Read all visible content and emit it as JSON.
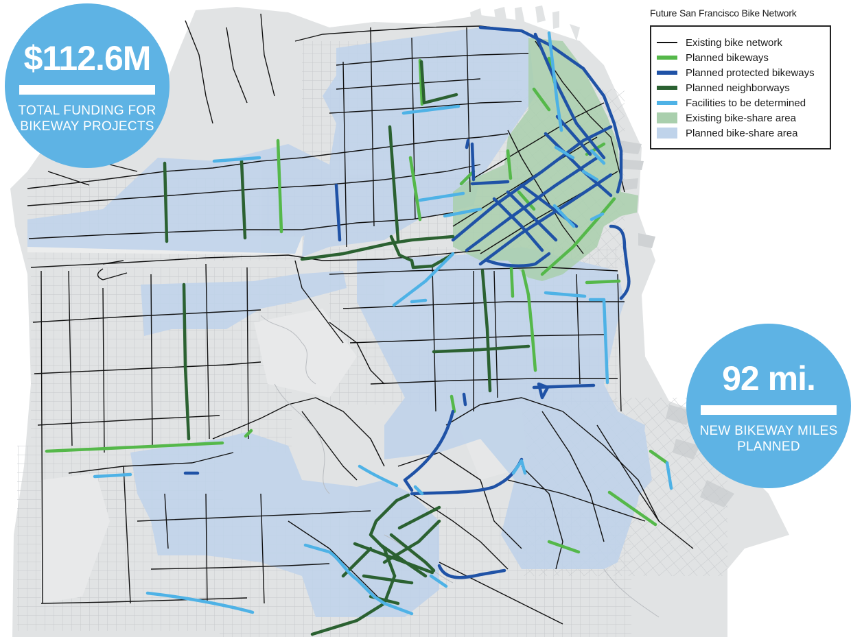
{
  "map": {
    "title": "Future San Francisco Bike Network",
    "colors": {
      "land": "#e1e3e4",
      "street": "#c2c5c8",
      "existing_network": "#111111",
      "planned_bikeways": "#55b84a",
      "planned_protected_bikeways": "#1f52a6",
      "planned_neighborways": "#2b6131",
      "facilities_tbd": "#4eb2e6",
      "existing_bikeshare": "#a9cfad",
      "planned_bikeshare": "#bfd3ea",
      "callout": "#5eb3e4"
    }
  },
  "callouts": {
    "funding": {
      "value": "$112.6M",
      "caption_line1": "TOTAL FUNDING FOR",
      "caption_line2": "BIKEWAY PROJECTS"
    },
    "miles": {
      "value": "92 mi.",
      "caption_line1": "NEW BIKEWAY MILES",
      "caption_line2": "PLANNED"
    }
  },
  "legend": {
    "items": [
      {
        "label": "Existing bike network",
        "symbol": "line-thin",
        "color": "#111111"
      },
      {
        "label": "Planned bikeways",
        "symbol": "line",
        "color": "#55b84a"
      },
      {
        "label": "Planned protected bikeways",
        "symbol": "line",
        "color": "#1f52a6"
      },
      {
        "label": "Planned neighborways",
        "symbol": "line",
        "color": "#2b6131"
      },
      {
        "label": "Facilities to be determined",
        "symbol": "line",
        "color": "#4eb2e6"
      },
      {
        "label": "Existing bike-share area",
        "symbol": "area",
        "color": "#a9cfad"
      },
      {
        "label": "Planned bike-share area",
        "symbol": "area",
        "color": "#bfd3ea"
      }
    ]
  }
}
